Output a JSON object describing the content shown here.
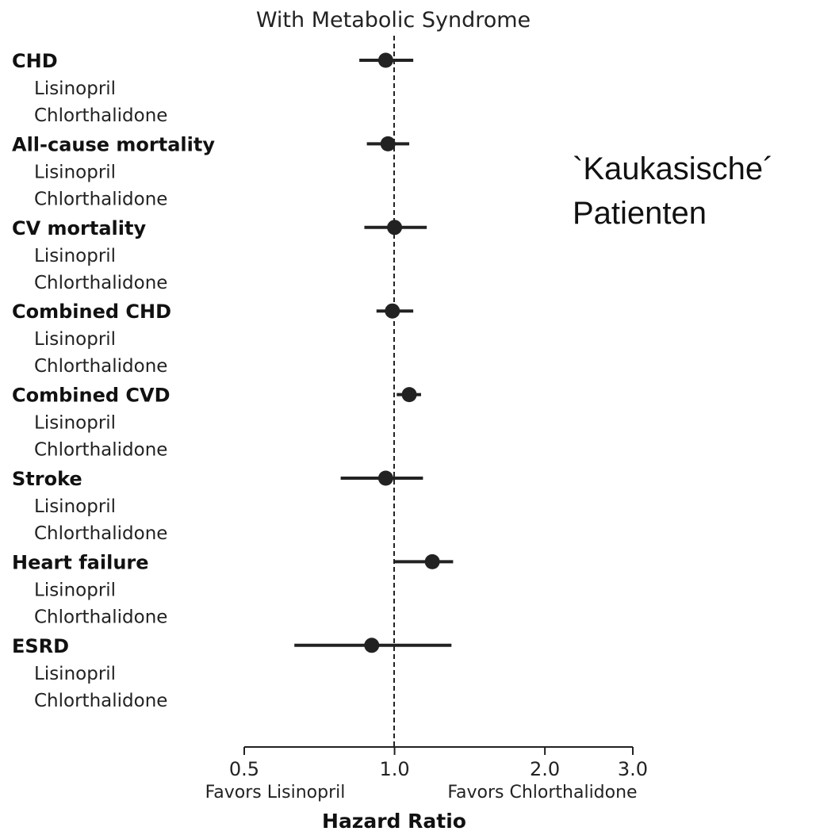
{
  "chart_data": {
    "type": "forest",
    "title": "With Metabolic Syndrome",
    "xlabel": "Hazard Ratio",
    "x_scale": "log",
    "xlim": [
      0.5,
      3.0
    ],
    "xticks": [
      {
        "value": 0.5,
        "label": "0.5"
      },
      {
        "value": 1.0,
        "label": "1.0"
      },
      {
        "value": 2.0,
        "label": "2.0"
      },
      {
        "value": 3.0,
        "label": "3.0"
      }
    ],
    "reference_line": 1.0,
    "favors_left": "Favors Lisinopril",
    "favors_right": "Favors Chlorthalidone",
    "annotation": [
      "`Kaukasische´",
      "Patienten"
    ],
    "color": "#222222",
    "outcomes": [
      {
        "name": "CHD",
        "arms": [
          "Lisinopril",
          "Chlorthalidone"
        ],
        "hr": 0.96,
        "ci": [
          0.85,
          1.09
        ]
      },
      {
        "name": "All-cause mortality",
        "arms": [
          "Lisinopril",
          "Chlorthalidone"
        ],
        "hr": 0.97,
        "ci": [
          0.88,
          1.07
        ]
      },
      {
        "name": "CV mortality",
        "arms": [
          "Lisinopril",
          "Chlorthalidone"
        ],
        "hr": 1.0,
        "ci": [
          0.87,
          1.16
        ]
      },
      {
        "name": "Combined CHD",
        "arms": [
          "Lisinopril",
          "Chlorthalidone"
        ],
        "hr": 0.99,
        "ci": [
          0.92,
          1.09
        ]
      },
      {
        "name": "Combined CVD",
        "arms": [
          "Lisinopril",
          "Chlorthalidone"
        ],
        "hr": 1.07,
        "ci": [
          1.01,
          1.13
        ]
      },
      {
        "name": "Stroke",
        "arms": [
          "Lisinopril",
          "Chlorthalidone"
        ],
        "hr": 0.96,
        "ci": [
          0.78,
          1.14
        ]
      },
      {
        "name": "Heart failure",
        "arms": [
          "Lisinopril",
          "Chlorthalidone"
        ],
        "hr": 1.19,
        "ci": [
          1.0,
          1.31
        ]
      },
      {
        "name": "ESRD",
        "arms": [
          "Lisinopril",
          "Chlorthalidone"
        ],
        "hr": 0.9,
        "ci": [
          0.63,
          1.3
        ]
      }
    ]
  }
}
